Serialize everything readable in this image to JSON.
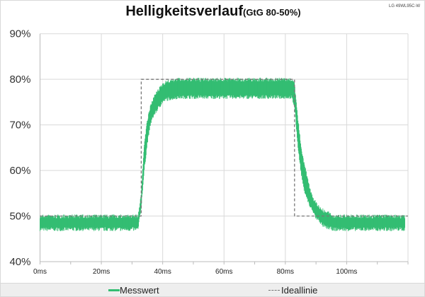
{
  "header": {
    "model": "LG 49WL95C-W"
  },
  "chart_data": {
    "type": "line",
    "title": "Helligkeitsverlauf",
    "subtitle": "(GtG 80-50%)",
    "xlabel": "",
    "ylabel": "",
    "xlim": [
      0,
      120
    ],
    "ylim": [
      40,
      90
    ],
    "x_ticks": [
      "0ms",
      "20ms",
      "40ms",
      "60ms",
      "80ms",
      "100ms"
    ],
    "x_tick_values": [
      0,
      20,
      40,
      60,
      80,
      100
    ],
    "y_ticks": [
      "40%",
      "50%",
      "60%",
      "70%",
      "80%",
      "90%"
    ],
    "y_tick_values": [
      40,
      50,
      60,
      70,
      80,
      90
    ],
    "grid": true,
    "legend_position": "bottom",
    "series": [
      {
        "name": "Messwert",
        "color": "#33bd72",
        "style": "noisy band (min/max per ms)",
        "x_ms": [
          0,
          32,
          33,
          34,
          35,
          36,
          37,
          38,
          39,
          40,
          41,
          45,
          82,
          83,
          84,
          85,
          86,
          87,
          88,
          89,
          90,
          91,
          92,
          93,
          96,
          119
        ],
        "min": [
          47,
          47,
          52,
          60,
          66,
          70,
          72,
          73,
          74,
          75,
          75.5,
          76,
          76,
          74,
          66,
          60,
          56,
          54,
          52,
          51,
          49.5,
          49,
          48,
          47.5,
          47,
          47
        ],
        "max": [
          50,
          50,
          55,
          66,
          71,
          74,
          76,
          77,
          78,
          79,
          79.5,
          80,
          80,
          79,
          72,
          66,
          62,
          59,
          56,
          54,
          53,
          52,
          51.5,
          51,
          50,
          50
        ]
      },
      {
        "name": "Ideallinie",
        "color": "#777777",
        "style": "dashed",
        "x_ms": [
          0,
          33,
          33,
          83,
          83,
          120
        ],
        "values": [
          50,
          50,
          80,
          80,
          50,
          50
        ]
      }
    ]
  }
}
